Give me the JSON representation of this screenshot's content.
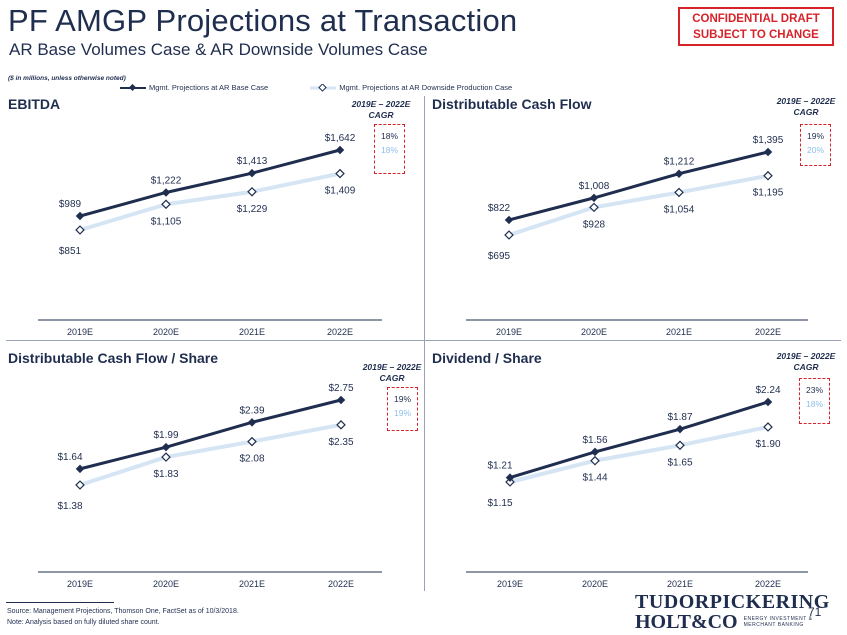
{
  "header": {
    "title": "PF AMGP Projections at Transaction",
    "subtitle": "AR Base Volumes Case & AR Downside Volumes Case",
    "confidential_line1": "CONFIDENTIAL DRAFT",
    "confidential_line2": "SUBJECT TO CHANGE"
  },
  "note": "($ in millions, unless otherwise noted)",
  "legend": {
    "base": "Mgmt. Projections at AR Base Case",
    "downside": "Mgmt. Projections at AR Downside Production Case"
  },
  "colors": {
    "base": "#1f2d4e",
    "downside": "#d5e5f4",
    "accent": "#d6232a",
    "downside_text": "#8ebfea"
  },
  "chart_data": [
    {
      "type": "line",
      "title": "EBITDA",
      "categories": [
        "2019E",
        "2020E",
        "2021E",
        "2022E"
      ],
      "series": [
        {
          "name": "Mgmt. Projections at AR Base Case",
          "values": [
            989,
            1222,
            1413,
            1642
          ],
          "labels": [
            "$989",
            "$1,222",
            "$1,413",
            "$1,642"
          ]
        },
        {
          "name": "Mgmt. Projections at AR Downside Production Case",
          "values": [
            851,
            1105,
            1229,
            1409
          ],
          "labels": [
            "$851",
            "$1,105",
            "$1,229",
            "$1,409"
          ]
        }
      ],
      "cagr_header": "2019E – 2022E CAGR",
      "cagr": [
        "18%",
        "18%"
      ]
    },
    {
      "type": "line",
      "title": "Distributable Cash Flow",
      "categories": [
        "2019E",
        "2020E",
        "2021E",
        "2022E"
      ],
      "series": [
        {
          "name": "Mgmt. Projections at AR Base Case",
          "values": [
            822,
            1008,
            1212,
            1395
          ],
          "labels": [
            "$822",
            "$1,008",
            "$1,212",
            "$1,395"
          ]
        },
        {
          "name": "Mgmt. Projections at AR Downside Production Case",
          "values": [
            695,
            928,
            1054,
            1195
          ],
          "labels": [
            "$695",
            "$928",
            "$1,054",
            "$1,195"
          ]
        }
      ],
      "cagr_header": "2019E – 2022E CAGR",
      "cagr": [
        "19%",
        "20%"
      ]
    },
    {
      "type": "line",
      "title": "Distributable Cash Flow / Share",
      "categories": [
        "2019E",
        "2020E",
        "2021E",
        "2022E"
      ],
      "series": [
        {
          "name": "Mgmt. Projections at AR Base Case",
          "values": [
            1.64,
            1.99,
            2.39,
            2.75
          ],
          "labels": [
            "$1.64",
            "$1.99",
            "$2.39",
            "$2.75"
          ]
        },
        {
          "name": "Mgmt. Projections at AR Downside Production Case",
          "values": [
            1.38,
            1.83,
            2.08,
            2.35
          ],
          "labels": [
            "$1.38",
            "$1.83",
            "$2.08",
            "$2.35"
          ]
        }
      ],
      "cagr_header": "2019E – 2022E CAGR",
      "cagr": [
        "19%",
        "19%"
      ]
    },
    {
      "type": "line",
      "title": "Dividend / Share",
      "categories": [
        "2019E",
        "2020E",
        "2021E",
        "2022E"
      ],
      "series": [
        {
          "name": "Mgmt. Projections at AR Base Case",
          "values": [
            1.21,
            1.56,
            1.87,
            2.24
          ],
          "labels": [
            "$1.21",
            "$1.56",
            "$1.87",
            "$2.24"
          ]
        },
        {
          "name": "Mgmt. Projections at AR Downside Production Case",
          "values": [
            1.15,
            1.44,
            1.65,
            1.9
          ],
          "labels": [
            "$1.15",
            "$1.44",
            "$1.65",
            "$1.90"
          ]
        }
      ],
      "cagr_header": "2019E – 2022E CAGR",
      "cagr": [
        "23%",
        "18%"
      ]
    }
  ],
  "footer": {
    "source": "Source: Management Projections, Thomson One, FactSet as of 10/3/2018.",
    "note": "Note: Analysis based on fully diluted share count.",
    "logo_line1": "TUDORPICKERING",
    "logo_line2": "HOLT&CO",
    "logo_tag1": "ENERGY INVESTMENT &",
    "logo_tag2": "MERCHANT BANKING",
    "page": "71"
  }
}
